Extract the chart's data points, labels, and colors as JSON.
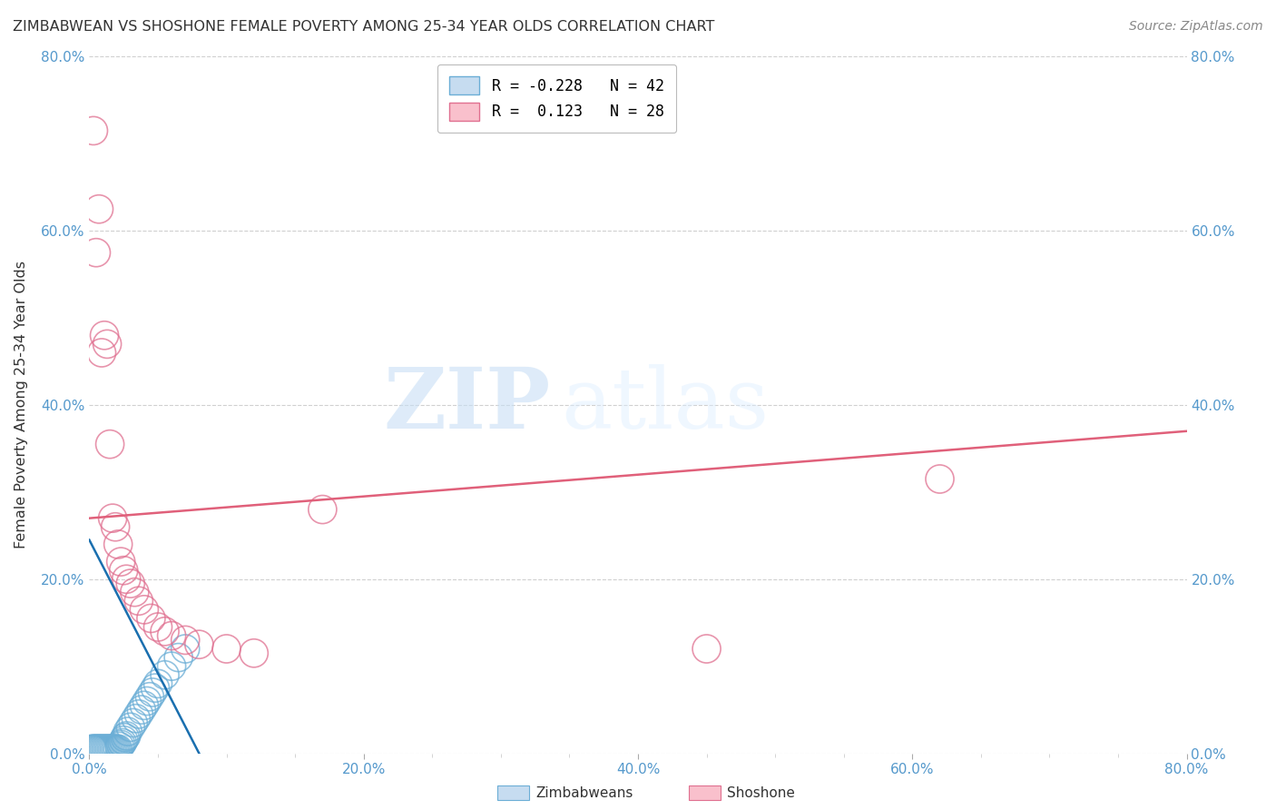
{
  "title": "ZIMBABWEAN VS SHOSHONE FEMALE POVERTY AMONG 25-34 YEAR OLDS CORRELATION CHART",
  "source": "Source: ZipAtlas.com",
  "ylabel": "Female Poverty Among 25-34 Year Olds",
  "x_tick_labels": [
    "0.0%",
    "",
    "",
    "",
    "",
    "",
    "",
    "",
    "20.0%",
    "",
    "",
    "",
    "",
    "",
    "",
    "",
    "40.0%",
    "",
    "",
    "",
    "",
    "",
    "",
    "",
    "60.0%",
    "",
    "",
    "",
    "",
    "",
    "",
    "",
    "80.0%"
  ],
  "x_tick_values": [
    0.0,
    0.025,
    0.05,
    0.075,
    0.1,
    0.125,
    0.15,
    0.175,
    0.2,
    0.225,
    0.25,
    0.275,
    0.3,
    0.325,
    0.35,
    0.375,
    0.4,
    0.425,
    0.45,
    0.475,
    0.5,
    0.525,
    0.55,
    0.575,
    0.6,
    0.625,
    0.65,
    0.675,
    0.7,
    0.725,
    0.75,
    0.775,
    0.8
  ],
  "y_tick_labels_left": [
    "0.0%",
    "20.0%",
    "40.0%",
    "60.0%",
    "80.0%"
  ],
  "y_tick_values": [
    0.0,
    0.2,
    0.4,
    0.6,
    0.8
  ],
  "y_tick_labels_right": [
    "0.0%",
    "20.0%",
    "40.0%",
    "60.0%",
    "80.0%"
  ],
  "xlim": [
    0.0,
    0.8
  ],
  "ylim": [
    0.0,
    0.8
  ],
  "zimbabwean_color_edge": "#6baed6",
  "zimbabwean_color_face": "#c6dcf0",
  "shoshone_color_edge": "#e07090",
  "shoshone_color_face": "#f9c0cc",
  "zimbabwean_scatter_x": [
    0.002,
    0.003,
    0.004,
    0.005,
    0.006,
    0.007,
    0.008,
    0.009,
    0.01,
    0.011,
    0.012,
    0.013,
    0.014,
    0.015,
    0.016,
    0.017,
    0.018,
    0.019,
    0.02,
    0.021,
    0.022,
    0.023,
    0.024,
    0.025,
    0.026,
    0.027,
    0.028,
    0.03,
    0.032,
    0.034,
    0.036,
    0.038,
    0.04,
    0.042,
    0.044,
    0.046,
    0.048,
    0.05,
    0.055,
    0.06,
    0.065,
    0.07
  ],
  "zimbabwean_scatter_y": [
    0.005,
    0.005,
    0.005,
    0.005,
    0.005,
    0.005,
    0.005,
    0.005,
    0.005,
    0.005,
    0.005,
    0.005,
    0.005,
    0.005,
    0.005,
    0.005,
    0.005,
    0.005,
    0.005,
    0.005,
    0.008,
    0.01,
    0.012,
    0.015,
    0.018,
    0.02,
    0.025,
    0.03,
    0.035,
    0.04,
    0.045,
    0.05,
    0.055,
    0.06,
    0.065,
    0.07,
    0.075,
    0.08,
    0.09,
    0.1,
    0.11,
    0.12
  ],
  "shoshone_scatter_x": [
    0.003,
    0.005,
    0.007,
    0.009,
    0.011,
    0.013,
    0.015,
    0.017,
    0.019,
    0.021,
    0.023,
    0.025,
    0.027,
    0.03,
    0.033,
    0.036,
    0.04,
    0.045,
    0.05,
    0.055,
    0.06,
    0.07,
    0.08,
    0.1,
    0.12,
    0.17,
    0.45,
    0.62
  ],
  "shoshone_scatter_y": [
    0.715,
    0.575,
    0.625,
    0.46,
    0.48,
    0.47,
    0.355,
    0.27,
    0.26,
    0.24,
    0.22,
    0.21,
    0.2,
    0.195,
    0.185,
    0.175,
    0.165,
    0.155,
    0.145,
    0.14,
    0.135,
    0.13,
    0.125,
    0.12,
    0.115,
    0.28,
    0.12,
    0.315
  ],
  "zimbabwean_trend_x": [
    0.0,
    0.08
  ],
  "zimbabwean_trend_y": [
    0.245,
    0.0
  ],
  "shoshone_trend_x": [
    0.0,
    0.8
  ],
  "shoshone_trend_y": [
    0.27,
    0.37
  ],
  "watermark_zip": "ZIP",
  "watermark_atlas": "atlas",
  "background_color": "#ffffff",
  "grid_color": "#d0d0d0",
  "scatter_size": 500,
  "legend_r1": "R = -0.228",
  "legend_n1": "N = 42",
  "legend_r2": "R =  0.123",
  "legend_n2": "N = 28",
  "legend_label1": "Zimbabweans",
  "legend_label2": "Shoshone"
}
